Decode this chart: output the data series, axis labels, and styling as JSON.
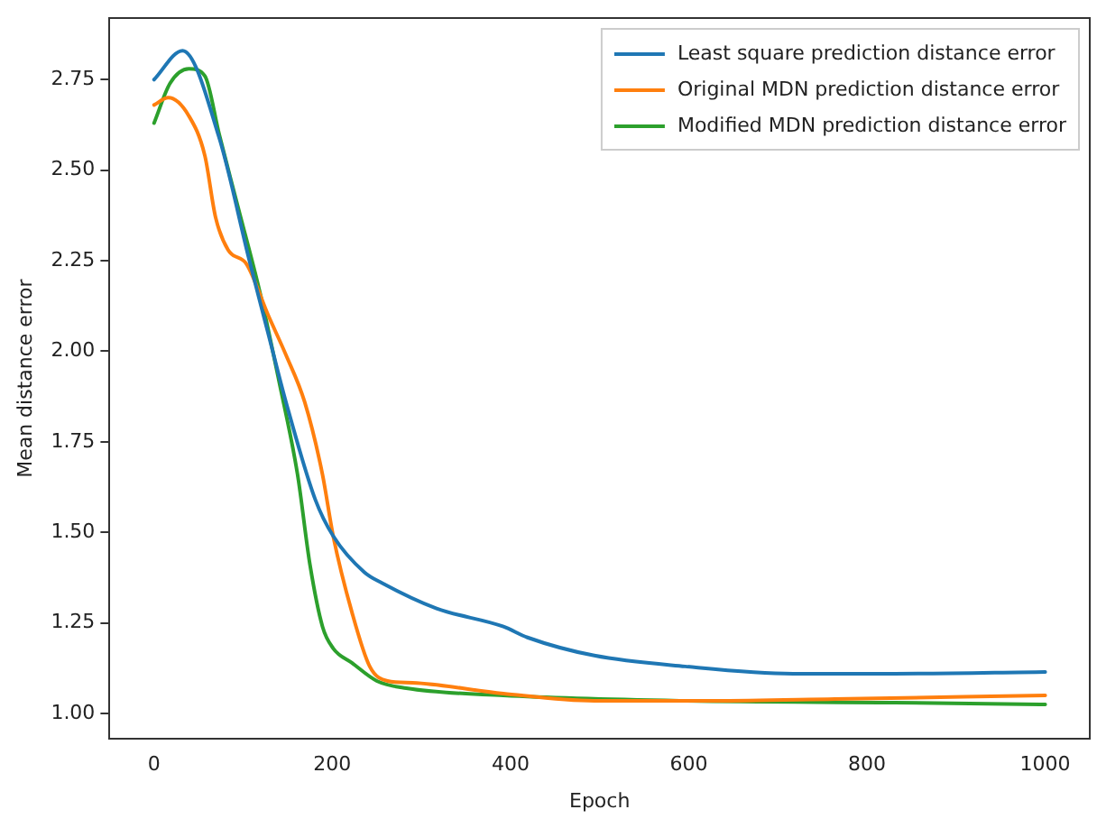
{
  "chart_data": {
    "type": "line",
    "xlabel": "Epoch",
    "ylabel": "Mean distance error",
    "xlim": [
      -50,
      1050
    ],
    "xticks": [
      0,
      200,
      400,
      600,
      800,
      1000
    ],
    "ylim": [
      0.93,
      2.92
    ],
    "yticks": [
      {
        "value": 1,
        "label": "1.00"
      },
      {
        "value": 1.25,
        "label": "1.25"
      },
      {
        "value": 1.5,
        "label": "1.50"
      },
      {
        "value": 1.75,
        "label": "1.75"
      },
      {
        "value": 2,
        "label": "2.00"
      },
      {
        "value": 2.25,
        "label": "2.25"
      },
      {
        "value": 2.5,
        "label": "2.50"
      },
      {
        "value": 2.75,
        "label": "2.75"
      }
    ],
    "grid": false,
    "legend": "top right",
    "marker": "none",
    "line_style": "solid",
    "series": [
      {
        "name": "Least square prediction distance error",
        "color": "#1f77b4",
        "x": [
          0,
          32,
          73,
          107,
          128,
          148,
          181,
          201,
          236,
          256,
          317,
          392,
          419,
          494,
          596,
          717,
          831,
          1000
        ],
        "values": [
          2.75,
          2.83,
          2.59,
          2.25,
          2.05,
          1.86,
          1.59,
          1.49,
          1.39,
          1.36,
          1.29,
          1.24,
          1.21,
          1.16,
          1.13,
          1.11,
          1.11,
          1.115
        ]
      },
      {
        "name": "Original MDN prediction distance error",
        "color": "#ff7f0e",
        "x": [
          0,
          16,
          39,
          57,
          69,
          83,
          104,
          128,
          148,
          169,
          189,
          201,
          222,
          242,
          262,
          290,
          392,
          494,
          628,
          764,
          1000
        ],
        "values": [
          2.68,
          2.7,
          2.65,
          2.54,
          2.37,
          2.28,
          2.24,
          2.1,
          1.99,
          1.86,
          1.66,
          1.49,
          1.28,
          1.13,
          1.09,
          1.085,
          1.055,
          1.035,
          1.035,
          1.04,
          1.05
        ]
      },
      {
        "name": "Modified MDN prediction distance error",
        "color": "#2ca02c",
        "x": [
          0,
          18,
          39,
          57,
          73,
          94,
          120,
          140,
          161,
          175,
          189,
          201,
          222,
          250,
          283,
          392,
          596,
          831,
          1000
        ],
        "values": [
          2.63,
          2.74,
          2.78,
          2.76,
          2.6,
          2.4,
          2.15,
          1.92,
          1.66,
          1.41,
          1.24,
          1.18,
          1.14,
          1.09,
          1.07,
          1.05,
          1.035,
          1.03,
          1.025
        ]
      }
    ]
  }
}
